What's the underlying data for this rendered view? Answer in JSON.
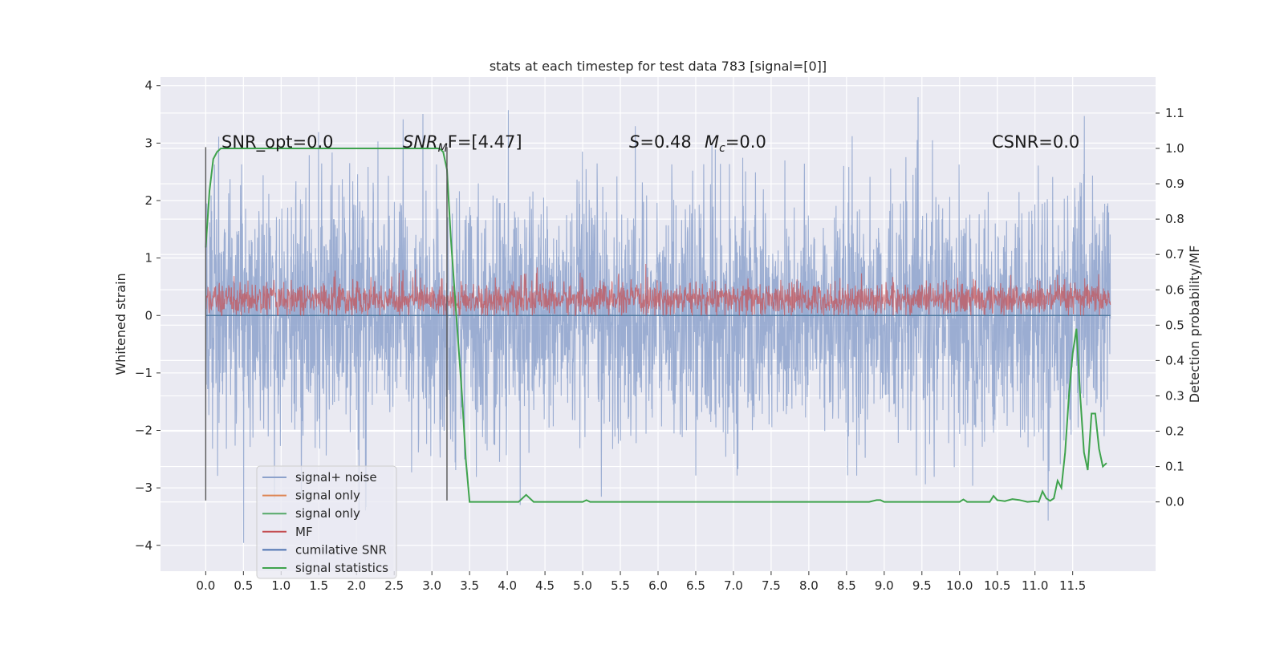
{
  "chart_data": {
    "type": "line",
    "title": "stats at each timestep for test data 783 [signal=[0]]",
    "xlabel": "",
    "ylabel": "Whitened strain",
    "ylabel_right": "Detection probability/MF",
    "xlim": [
      -0.6,
      12.6
    ],
    "ylim": [
      -4.45,
      4.15
    ],
    "ylim_right": [
      -0.196,
      1.202
    ],
    "x_ticks": [
      "0.0",
      "0.5",
      "1.0",
      "1.5",
      "2.0",
      "2.5",
      "3.0",
      "3.5",
      "4.0",
      "4.5",
      "5.0",
      "5.5",
      "6.0",
      "6.5",
      "7.0",
      "7.5",
      "8.0",
      "8.5",
      "9.0",
      "9.5",
      "10.0",
      "10.5",
      "11.0",
      "11.5"
    ],
    "y_ticks": [
      "4",
      "3",
      "2",
      "1",
      "0",
      "−1",
      "−2",
      "−3",
      "−4"
    ],
    "y_ticks_right": [
      "1.1",
      "1.0",
      "0.9",
      "0.8",
      "0.7",
      "0.6",
      "0.5",
      "0.4",
      "0.3",
      "0.2",
      "0.1",
      "0.0"
    ],
    "grid": true,
    "legend_placement": "lower-left",
    "annotations": {
      "snr_opt": "SNR_opt=0.0",
      "snr_mf_main": "SNR",
      "snr_mf_sub": "M",
      "snr_mf_tail": "F=[4.47]",
      "s_label": "S",
      "s_value": "=0.48",
      "mc_label": "M",
      "mc_sub": "c",
      "mc_value": "=0.0",
      "csnr": "CSNR=0.0"
    },
    "vertical_lines_x": [
      0.0,
      3.2
    ],
    "series": [
      {
        "name": "signal+ noise",
        "color": "#8da2cc",
        "noise_std": 1.0,
        "x_range": [
          0.0,
          12.0
        ],
        "y_range": [
          -4.1,
          3.8
        ]
      },
      {
        "name": "signal only",
        "color": "#dd8452",
        "y_value": 0.0
      },
      {
        "name": "signal only",
        "color": "#55a868",
        "y_value": 0.0
      },
      {
        "name": "MF",
        "color": "#c44e52",
        "y_range": [
          0.0,
          1.0
        ]
      },
      {
        "name": "cumilative SNR",
        "color": "#4c72b0",
        "y_value": 0.0
      },
      {
        "name": "signal statistics",
        "color": "#3fa34d",
        "axis": "right",
        "x": [
          0.0,
          0.05,
          0.1,
          0.15,
          0.2,
          0.3,
          0.5,
          0.7,
          1.0,
          1.5,
          2.0,
          2.5,
          3.0,
          3.05,
          3.1,
          3.15,
          3.2,
          3.25,
          3.3,
          3.35,
          3.4,
          3.45,
          3.5,
          3.6,
          3.8,
          4.0,
          4.15,
          4.25,
          4.35,
          4.5,
          5.0,
          5.05,
          5.1,
          5.2,
          6.0,
          7.0,
          8.0,
          8.8,
          8.9,
          8.95,
          9.0,
          9.5,
          10.0,
          10.05,
          10.1,
          10.2,
          10.4,
          10.45,
          10.5,
          10.6,
          10.7,
          10.8,
          10.9,
          11.0,
          11.05,
          11.1,
          11.15,
          11.2,
          11.25,
          11.3,
          11.35,
          11.4,
          11.45,
          11.5,
          11.55,
          11.6,
          11.65,
          11.7,
          11.75,
          11.8,
          11.85,
          11.9,
          11.95
        ],
        "y": [
          0.72,
          0.88,
          0.97,
          0.99,
          1.0,
          1.0,
          1.0,
          1.0,
          1.0,
          1.0,
          1.0,
          1.0,
          1.0,
          1.0,
          1.0,
          0.99,
          0.94,
          0.75,
          0.6,
          0.45,
          0.3,
          0.12,
          0.0,
          0.0,
          0.0,
          0.0,
          0.0,
          0.02,
          0.0,
          0.0,
          0.0,
          0.005,
          0.0,
          0.0,
          0.0,
          0.0,
          0.0,
          0.0,
          0.005,
          0.005,
          0.0,
          0.0,
          0.0,
          0.007,
          0.0,
          0.0,
          0.0,
          0.017,
          0.005,
          0.002,
          0.008,
          0.005,
          0.0,
          0.002,
          0.0,
          0.03,
          0.01,
          0.003,
          0.01,
          0.06,
          0.04,
          0.14,
          0.3,
          0.42,
          0.49,
          0.3,
          0.14,
          0.09,
          0.25,
          0.25,
          0.15,
          0.1,
          0.11
        ]
      }
    ]
  }
}
